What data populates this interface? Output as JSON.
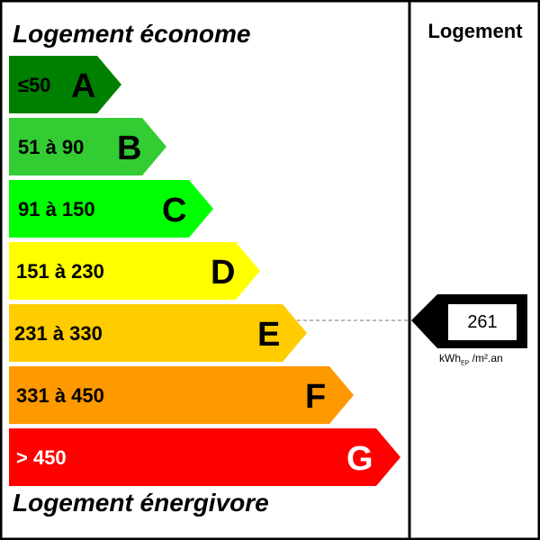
{
  "header": {
    "title_top": "Logement économe",
    "title_bottom": "Logement énergivore",
    "column_label": "Logement"
  },
  "classes": [
    {
      "letter": "A",
      "range": "≤50",
      "color": "#008000"
    },
    {
      "letter": "B",
      "range": "51 à 90",
      "color": "#33cc33"
    },
    {
      "letter": "C",
      "range": "91 à 150",
      "color": "#00ff00"
    },
    {
      "letter": "D",
      "range": "151 à 230",
      "color": "#ffff00"
    },
    {
      "letter": "E",
      "range": "231 à 330",
      "color": "#ffcc00"
    },
    {
      "letter": "F",
      "range": "331 à 450",
      "color": "#ff9900"
    },
    {
      "letter": "G",
      "range": "> 450",
      "color": "#ff0000"
    }
  ],
  "indicator": {
    "value": "261",
    "class": "E",
    "unit_main": "kWh",
    "unit_sub": "EP",
    "unit_suffix": " /m².an"
  }
}
